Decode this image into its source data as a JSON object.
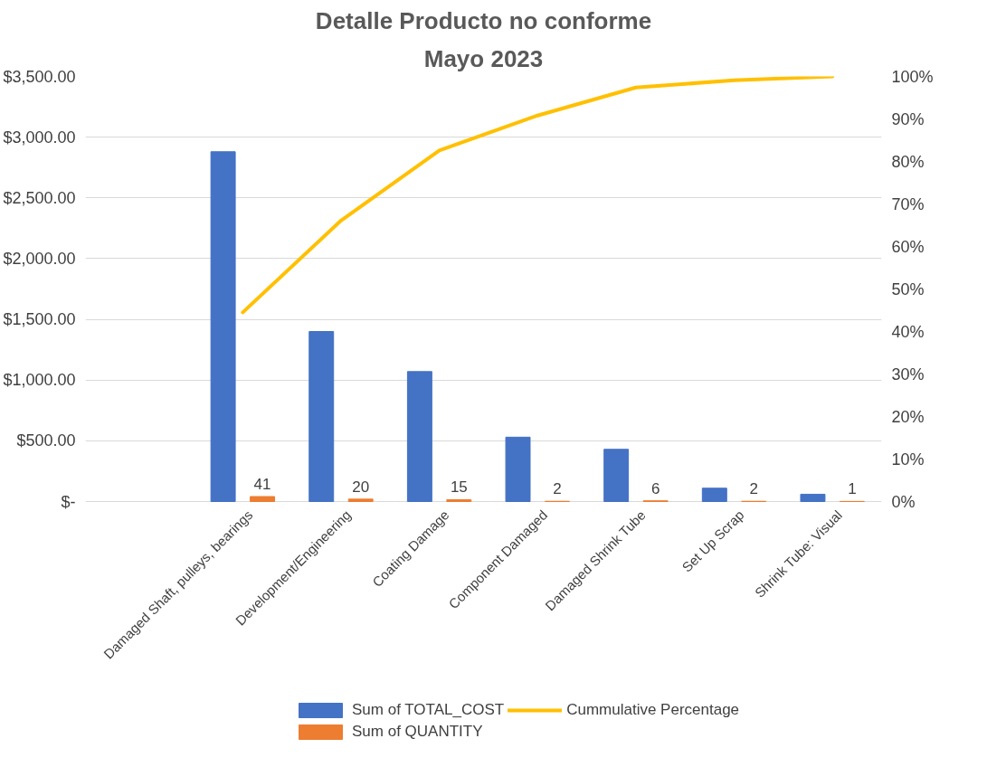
{
  "chart_data": {
    "type": "bar",
    "title": "Detalle Producto no conforme",
    "subtitle": "Mayo 2023",
    "categories": [
      "Damaged Shaft, pulleys, bearings",
      "Development/Engineering",
      "Coating Damage",
      "Component Damaged",
      "Damaged Shrink Tube",
      "Set Up Scrap",
      "Shrink Tube: Visual"
    ],
    "series": [
      {
        "name": "Sum of TOTAL_COST",
        "color": "#4472c4",
        "values": [
          2880,
          1400,
          1070,
          530,
          430,
          110,
          60
        ]
      },
      {
        "name": "Sum of QUANTITY",
        "color": "#ed7d31",
        "values": [
          41,
          20,
          15,
          2,
          6,
          2,
          1
        ],
        "value_labels": [
          "41",
          "20",
          "15",
          "2",
          "6",
          "2",
          "1"
        ]
      },
      {
        "name": "Cummulative Percentage",
        "type": "line",
        "axis": "y2",
        "color": "#ffc000",
        "values": [
          44.5,
          66.1,
          82.6,
          90.8,
          97.4,
          99.1,
          100
        ]
      }
    ],
    "ylim": [
      0,
      3500
    ],
    "yticks": [
      {
        "value": 0,
        "label": "$-"
      },
      {
        "value": 500,
        "label": "$500.00"
      },
      {
        "value": 1000,
        "label": "$1,000.00"
      },
      {
        "value": 1500,
        "label": "$1,500.00"
      },
      {
        "value": 2000,
        "label": "$2,000.00"
      },
      {
        "value": 2500,
        "label": "$2,500.00"
      },
      {
        "value": 3000,
        "label": "$3,000.00"
      },
      {
        "value": 3500,
        "label": "$3,500.00"
      }
    ],
    "y2lim": [
      0,
      100
    ],
    "y2ticks": [
      {
        "value": 0,
        "label": "0%"
      },
      {
        "value": 10,
        "label": "10%"
      },
      {
        "value": 20,
        "label": "20%"
      },
      {
        "value": 30,
        "label": "30%"
      },
      {
        "value": 40,
        "label": "40%"
      },
      {
        "value": 50,
        "label": "50%"
      },
      {
        "value": 60,
        "label": "60%"
      },
      {
        "value": 70,
        "label": "70%"
      },
      {
        "value": 80,
        "label": "80%"
      },
      {
        "value": 90,
        "label": "90%"
      },
      {
        "value": 100,
        "label": "100%"
      }
    ],
    "grid": "y",
    "legend": "bottom"
  }
}
